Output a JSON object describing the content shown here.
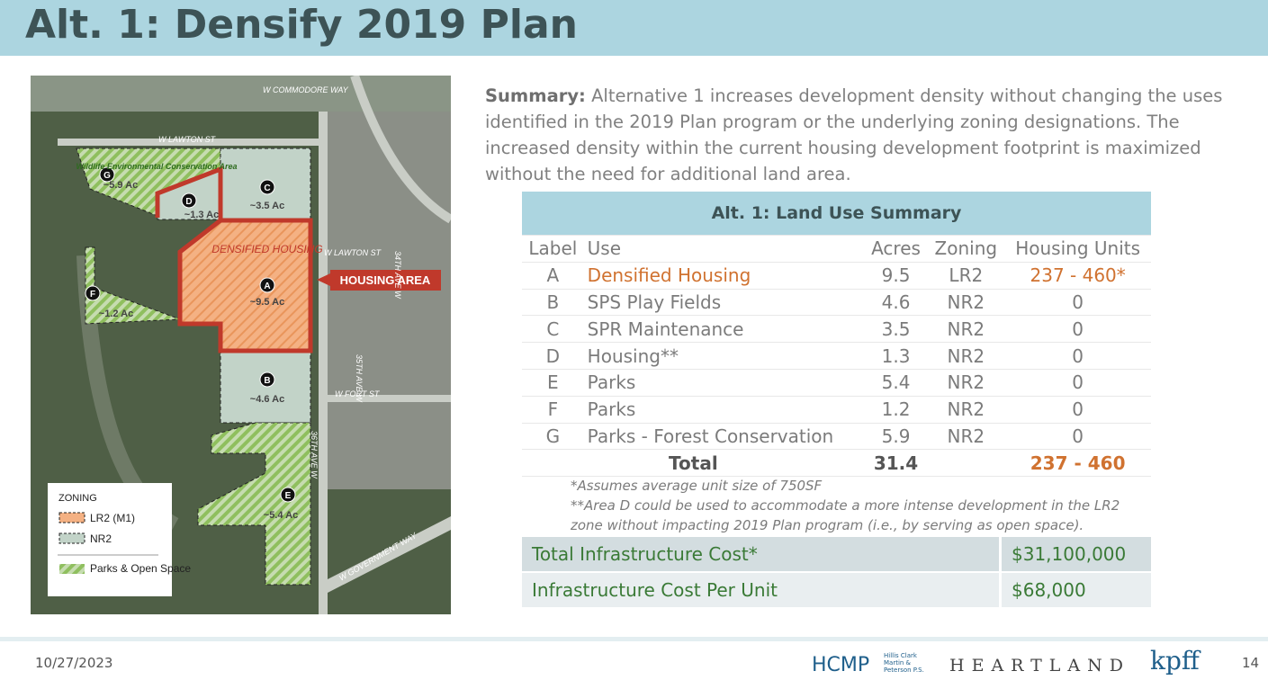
{
  "header": {
    "title": "Alt. 1: Densify 2019 Plan"
  },
  "map": {
    "streets": [
      "W COMMODORE WAY",
      "W LAWTON ST",
      "W LAWTON ST",
      "34TH AVE W",
      "35TH AVE W",
      "W FORT ST",
      "36TH AVE W",
      "W GOVERNMENT WAY"
    ],
    "areas": [
      {
        "letter": "G",
        "acres": "~5.9 Ac",
        "note": "Wildlife Environmental Conservation Area"
      },
      {
        "letter": "D",
        "acres": "~1.3 Ac"
      },
      {
        "letter": "C",
        "acres": "~3.5 Ac"
      },
      {
        "letter": "A",
        "acres": "~9.5 Ac",
        "note": "DENSIFIED HOUSING"
      },
      {
        "letter": "F",
        "acres": "~1.2 Ac"
      },
      {
        "letter": "B",
        "acres": "~4.6 Ac"
      },
      {
        "letter": "E",
        "acres": "~5.4 Ac"
      }
    ],
    "callout": "HOUSING AREA",
    "legend": {
      "title": "ZONING",
      "items": [
        "LR2 (M1)",
        "NR2",
        "Parks & Open Space"
      ]
    }
  },
  "summary": {
    "lead": "Summary:",
    "text": "Alternative 1 increases development density without changing the uses identified in the 2019 Plan program or the underlying zoning designations. The increased density within the current housing development footprint is maximized without the need for additional land area."
  },
  "table": {
    "title": "Alt. 1: Land Use Summary",
    "columns": [
      "Label",
      "Use",
      "Acres",
      "Zoning",
      "Housing Units"
    ],
    "rows": [
      [
        "A",
        "Densified Housing",
        9.5,
        "LR2",
        "237 - 460*"
      ],
      [
        "B",
        "SPS Play Fields",
        4.6,
        "NR2",
        0
      ],
      [
        "C",
        "SPR Maintenance",
        3.5,
        "NR2",
        0
      ],
      [
        "D",
        "Housing**",
        1.3,
        "NR2",
        0
      ],
      [
        "E",
        "Parks",
        5.4,
        "NR2",
        0
      ],
      [
        "F",
        "Parks",
        1.2,
        "NR2",
        0
      ],
      [
        "G",
        "Parks - Forest Conservation",
        5.9,
        "NR2",
        0
      ]
    ],
    "total": [
      "Total",
      31.4,
      "237 - 460"
    ]
  },
  "notes": [
    "*Assumes average unit size of 750SF",
    "**Area D could be used to accommodate a more intense development in the LR2 zone without impacting 2019 Plan program (i.e., by serving as open space)."
  ],
  "costs": [
    [
      "Total Infrastructure Cost*",
      "$31,100,000"
    ],
    [
      "Infrastructure Cost Per Unit",
      "$68,000"
    ]
  ],
  "footer": {
    "date": "10/27/2023",
    "logos": [
      "HCMP",
      "Hillis Clark Martin & Peterson P.S.",
      "HEARTLAND",
      "kpff"
    ],
    "page": "14"
  }
}
